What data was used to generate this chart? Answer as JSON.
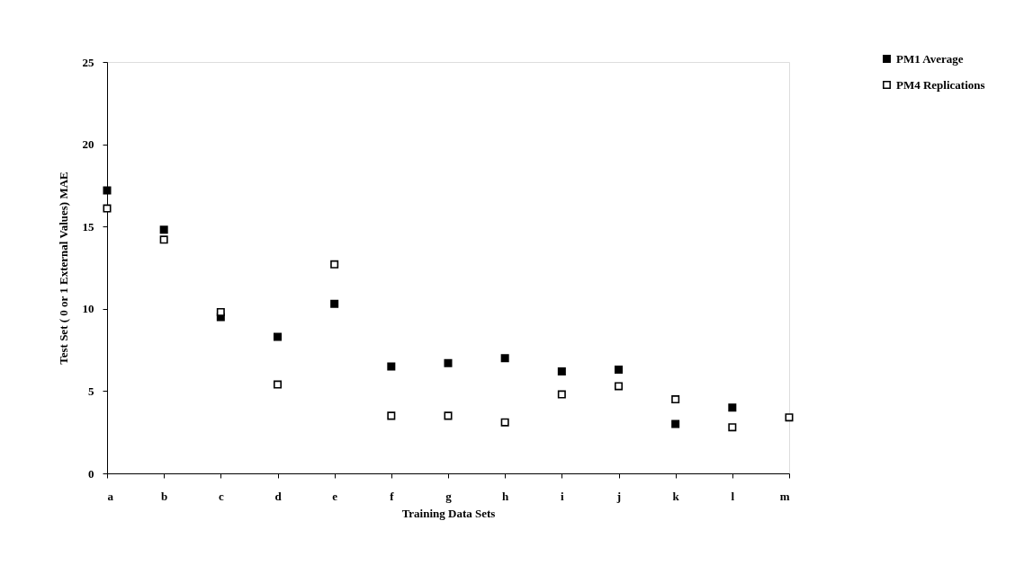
{
  "chart_data": {
    "type": "scatter",
    "xlabel": "Training Data Sets",
    "ylabel": "Test Set ( 0 or 1 External Values) MAE",
    "categories": [
      "a",
      "b",
      "c",
      "d",
      "e",
      "f",
      "g",
      "h",
      "i",
      "j",
      "k",
      "l",
      "m"
    ],
    "series": [
      {
        "name": "PM1 Average",
        "color": "#000000",
        "values": [
          17.2,
          14.8,
          9.5,
          8.3,
          10.3,
          6.5,
          6.7,
          7.0,
          6.2,
          6.3,
          3.0,
          4.0,
          null
        ]
      },
      {
        "name": "PM4 Replications",
        "color": "#ffffff",
        "values": [
          16.1,
          14.2,
          9.8,
          5.4,
          12.7,
          3.5,
          3.5,
          3.1,
          4.8,
          5.3,
          4.5,
          2.8,
          3.4
        ]
      }
    ],
    "ylim": [
      0,
      25
    ],
    "yticks": [
      0,
      5,
      10,
      15,
      20,
      25
    ],
    "grid": false,
    "legend": "top right",
    "marker": "square"
  }
}
